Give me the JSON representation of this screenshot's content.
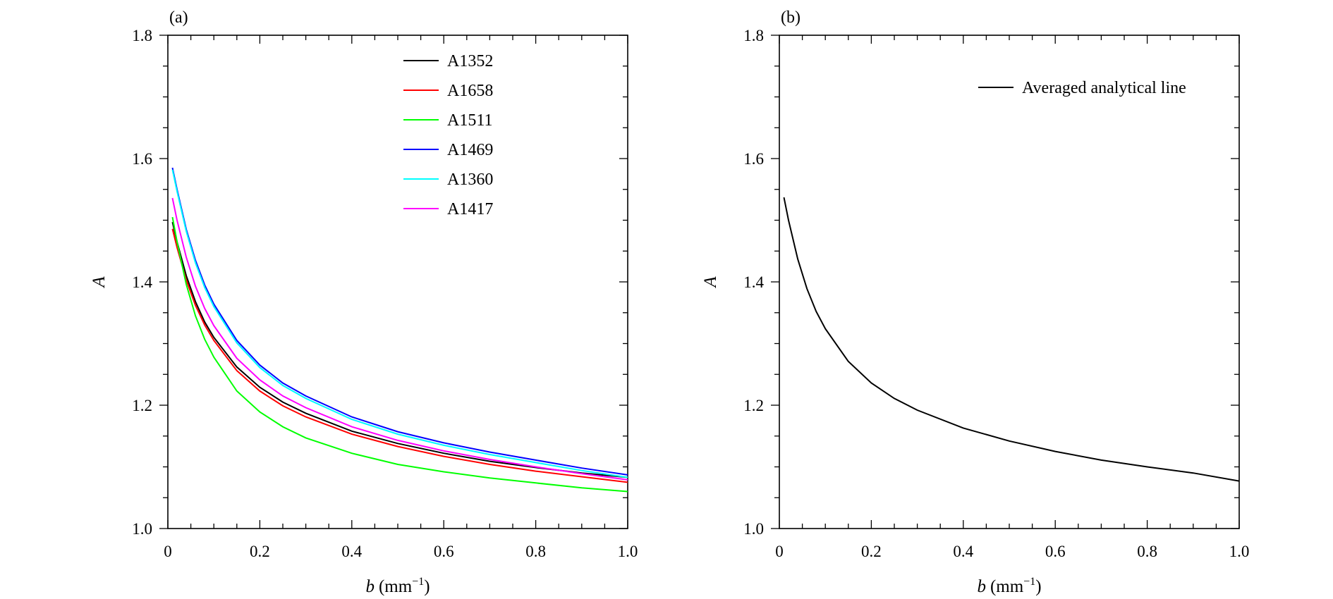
{
  "chart_data": [
    {
      "type": "line",
      "panel_label": "(a)",
      "xlabel_var": "b",
      "xlabel_unit": "(mm",
      "xlabel_exp": "−1",
      "xlabel_close": ")",
      "ylabel": "A",
      "xlim": [
        0,
        1.0
      ],
      "ylim": [
        1.0,
        1.8
      ],
      "x_ticks": [
        "0",
        "0.2",
        "0.4",
        "0.6",
        "0.8",
        "1.0"
      ],
      "y_ticks": [
        "1.0",
        "1.2",
        "1.4",
        "1.6",
        "1.8"
      ],
      "legend_position": "top-center",
      "x": [
        0.01,
        0.02,
        0.04,
        0.06,
        0.08,
        0.1,
        0.15,
        0.2,
        0.25,
        0.3,
        0.4,
        0.5,
        0.6,
        0.7,
        0.8,
        0.9,
        1.0
      ],
      "series": [
        {
          "name": "A1352",
          "color": "#000000",
          "values": [
            1.497,
            1.465,
            1.41,
            1.368,
            1.335,
            1.31,
            1.262,
            1.229,
            1.205,
            1.187,
            1.158,
            1.138,
            1.122,
            1.109,
            1.099,
            1.09,
            1.083
          ]
        },
        {
          "name": "A1658",
          "color": "#ff0000",
          "values": [
            1.486,
            1.456,
            1.403,
            1.362,
            1.33,
            1.305,
            1.256,
            1.223,
            1.199,
            1.181,
            1.153,
            1.133,
            1.117,
            1.104,
            1.093,
            1.084,
            1.075
          ]
        },
        {
          "name": "A1511",
          "color": "#00ff00",
          "values": [
            1.505,
            1.465,
            1.396,
            1.345,
            1.307,
            1.278,
            1.223,
            1.189,
            1.165,
            1.147,
            1.122,
            1.104,
            1.092,
            1.082,
            1.074,
            1.066,
            1.06
          ]
        },
        {
          "name": "A1469",
          "color": "#0000ff",
          "values": [
            1.585,
            1.55,
            1.485,
            1.435,
            1.395,
            1.364,
            1.305,
            1.265,
            1.236,
            1.215,
            1.181,
            1.157,
            1.139,
            1.124,
            1.111,
            1.098,
            1.087
          ]
        },
        {
          "name": "A1360",
          "color": "#00ffff",
          "values": [
            1.582,
            1.547,
            1.482,
            1.431,
            1.391,
            1.36,
            1.301,
            1.261,
            1.232,
            1.211,
            1.177,
            1.153,
            1.135,
            1.12,
            1.107,
            1.094,
            1.083
          ]
        },
        {
          "name": "A1417",
          "color": "#ff00ff",
          "values": [
            1.536,
            1.5,
            1.44,
            1.393,
            1.357,
            1.329,
            1.276,
            1.241,
            1.215,
            1.196,
            1.165,
            1.143,
            1.126,
            1.112,
            1.1,
            1.089,
            1.079
          ]
        }
      ]
    },
    {
      "type": "line",
      "panel_label": "(b)",
      "xlabel_var": "b",
      "xlabel_unit": "(mm",
      "xlabel_exp": "−1",
      "xlabel_close": ")",
      "ylabel": "A",
      "xlim": [
        0,
        1.0
      ],
      "ylim": [
        1.0,
        1.8
      ],
      "x_ticks": [
        "0",
        "0.2",
        "0.4",
        "0.6",
        "0.8",
        "1.0"
      ],
      "y_ticks": [
        "1.0",
        "1.2",
        "1.4",
        "1.6",
        "1.8"
      ],
      "legend_position": "top-right",
      "x": [
        0.01,
        0.02,
        0.04,
        0.06,
        0.08,
        0.1,
        0.15,
        0.2,
        0.25,
        0.3,
        0.4,
        0.5,
        0.6,
        0.7,
        0.8,
        0.9,
        1.0
      ],
      "series": [
        {
          "name": "Averaged analytical line",
          "color": "#000000",
          "values": [
            1.537,
            1.5,
            1.437,
            1.389,
            1.352,
            1.324,
            1.271,
            1.236,
            1.211,
            1.192,
            1.163,
            1.142,
            1.125,
            1.111,
            1.1,
            1.09,
            1.077
          ]
        }
      ]
    }
  ]
}
